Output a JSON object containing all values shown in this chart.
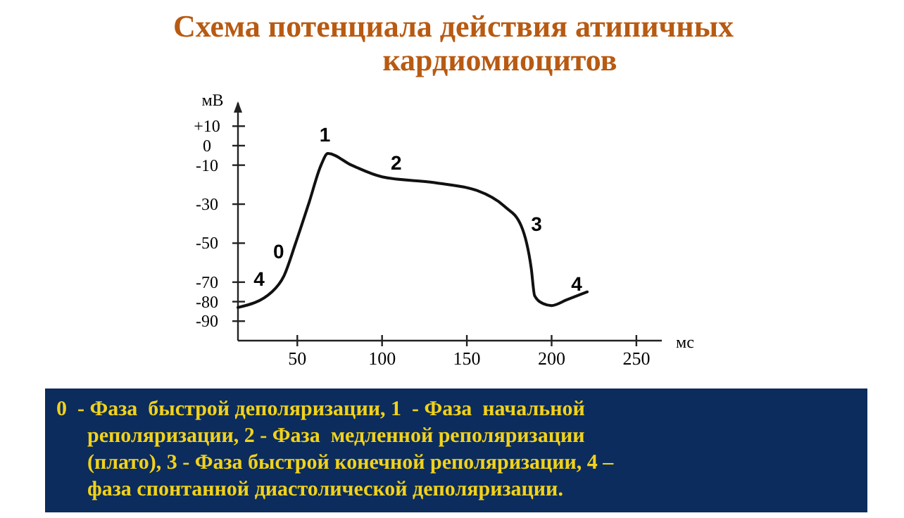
{
  "chart_data": {
    "type": "line",
    "title": "Схема потенциала действия атипичных\nкардиомиоцитов",
    "xlabel": "мс",
    "ylabel": "мВ",
    "x": [
      15,
      35,
      42,
      49,
      57,
      64,
      68,
      82,
      100,
      131,
      156,
      172,
      182,
      188,
      190,
      195,
      200,
      209,
      221
    ],
    "series": [
      {
        "color": "#111111",
        "values": [
          -83,
          -75,
          -67,
          -50,
          -29,
          -10,
          -4,
          -10,
          -16,
          -19,
          -23,
          -31,
          -41,
          -63,
          -77,
          -81,
          -82,
          -79,
          -75
        ]
      }
    ],
    "xlim": [
      15,
      265
    ],
    "xticks": [
      50,
      100,
      150,
      200,
      250
    ],
    "ylim": [
      -100,
      22
    ],
    "yticks": [
      {
        "value": 10,
        "label": "+10"
      },
      0,
      -10,
      -30,
      -50,
      -70,
      -80,
      -90
    ],
    "grid": false,
    "marker": "none",
    "line_style": "solid",
    "annotations": [
      {
        "text": "0",
        "x": 49,
        "y": -50
      },
      {
        "text": "1",
        "x": 68,
        "y": -4
      },
      {
        "text": "2",
        "x": 100,
        "y": -16
      },
      {
        "text": "3",
        "x": 182,
        "y": -41
      },
      {
        "text": "4",
        "x": 35,
        "y": -75
      },
      {
        "text": "4",
        "x": 209,
        "y": -79
      },
      "0  - Фаза  быстрой деполяризации, 1  - Фаза  начальной\nреполяризации, 2 - Фаза  медленной реполяризации\n(плато), 3 - Фаза быстрой конечной реполяризации, 4 –\nфаза спонтанной диастолической деполяризации."
    ]
  }
}
